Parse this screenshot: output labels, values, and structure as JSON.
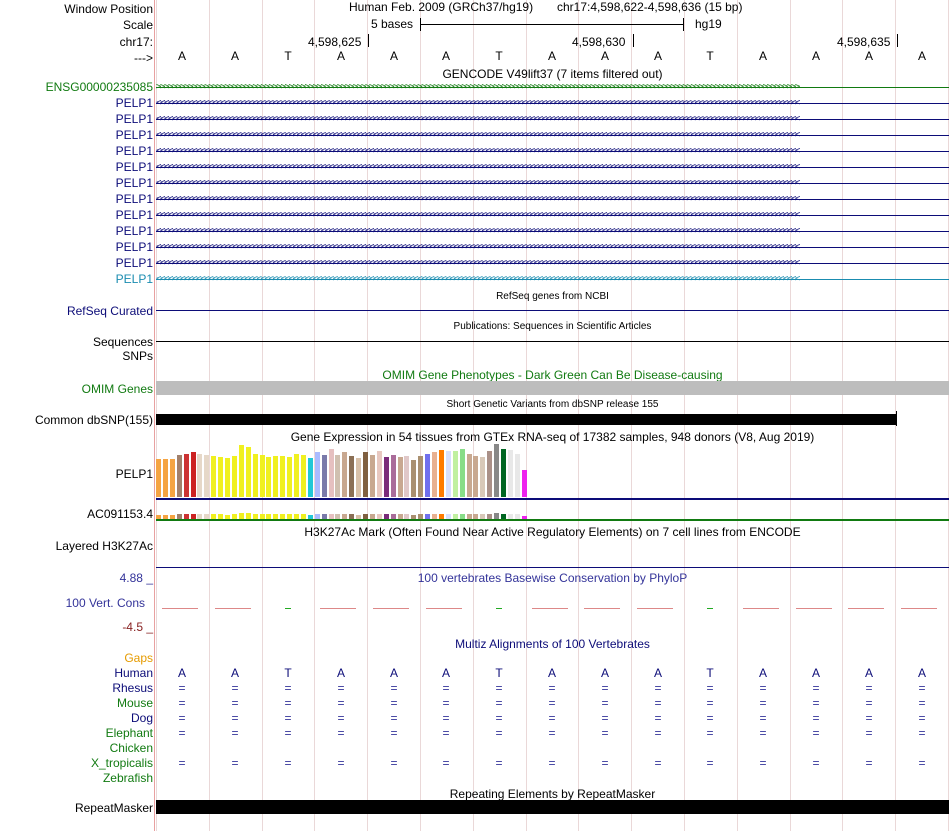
{
  "header": {
    "window_position_label": "Window Position",
    "scale_label": "Scale",
    "chrom_label": "chr17:",
    "arrow_label": "--->",
    "assembly_text": "Human Feb. 2009 (GRCh37/hg19)",
    "position_text": "chr17:4,598,622-4,598,636 (15 bp)",
    "scale_text": "5 bases",
    "db_text": "hg19",
    "ticks": [
      "4,598,625",
      "4,598,630",
      "4,598,635"
    ]
  },
  "sequence": [
    "A",
    "A",
    "T",
    "A",
    "A",
    "A",
    "T",
    "A",
    "A",
    "A",
    "T",
    "A",
    "A",
    "A",
    "A"
  ],
  "gencode": {
    "title": "GENCODE V49lift37 (7 items filtered out)",
    "first": {
      "label": "ENSG00000235085",
      "strand": "forward",
      "color": "#117a11"
    },
    "genes": [
      {
        "label": "PELP1",
        "color": "#0c0c78"
      },
      {
        "label": "PELP1",
        "color": "#0c0c78"
      },
      {
        "label": "PELP1",
        "color": "#0c0c78"
      },
      {
        "label": "PELP1",
        "color": "#0c0c78"
      },
      {
        "label": "PELP1",
        "color": "#0c0c78"
      },
      {
        "label": "PELP1",
        "color": "#0c0c78"
      },
      {
        "label": "PELP1",
        "color": "#0c0c78"
      },
      {
        "label": "PELP1",
        "color": "#0c0c78"
      },
      {
        "label": "PELP1",
        "color": "#0c0c78"
      },
      {
        "label": "PELP1",
        "color": "#0c0c78"
      },
      {
        "label": "PELP1",
        "color": "#0c0c78"
      },
      {
        "label": "PELP1",
        "color": "#1a8cb0"
      }
    ]
  },
  "refseq": {
    "title": "RefSeq genes from NCBI",
    "label": "RefSeq Curated",
    "color": "#0c0c78"
  },
  "publications": {
    "title": "Publications: Sequences in Scientific Articles",
    "label": "Sequences"
  },
  "snps_label": "SNPs",
  "omim": {
    "title": "OMIM Gene Phenotypes - Dark Green Can Be Disease-causing",
    "label": "OMIM Genes",
    "color": "#117a11"
  },
  "dbsnp": {
    "title": "Short Genetic Variants from dbSNP release 155",
    "label": "Common dbSNP(155)"
  },
  "gtex": {
    "title": "Gene Expression in 54 tissues from GTEx RNA-seq of 17382 samples, 948 donors (V8, Aug 2019)",
    "gene1": "PELP1",
    "gene2": "AC091153.4",
    "bars": [
      {
        "v": 0.72,
        "c": "#f5a442"
      },
      {
        "v": 0.72,
        "c": "#f5a442"
      },
      {
        "v": 0.72,
        "c": "#f5a442"
      },
      {
        "v": 0.8,
        "c": "#a2806b"
      },
      {
        "v": 0.82,
        "c": "#cc3333"
      },
      {
        "v": 0.85,
        "c": "#cc2222"
      },
      {
        "v": 0.82,
        "c": "#e6d8c8"
      },
      {
        "v": 0.8,
        "c": "#e6d8c8"
      },
      {
        "v": 0.78,
        "c": "#f0f020"
      },
      {
        "v": 0.76,
        "c": "#f0f020"
      },
      {
        "v": 0.74,
        "c": "#f0f020"
      },
      {
        "v": 0.78,
        "c": "#f0f020"
      },
      {
        "v": 0.98,
        "c": "#f0f020"
      },
      {
        "v": 0.95,
        "c": "#f0f020"
      },
      {
        "v": 0.82,
        "c": "#f0f020"
      },
      {
        "v": 0.8,
        "c": "#f0f020"
      },
      {
        "v": 0.76,
        "c": "#f0f020"
      },
      {
        "v": 0.78,
        "c": "#f0f020"
      },
      {
        "v": 0.78,
        "c": "#f0f020"
      },
      {
        "v": 0.76,
        "c": "#f0f020"
      },
      {
        "v": 0.82,
        "c": "#f0f020"
      },
      {
        "v": 0.8,
        "c": "#f0f020"
      },
      {
        "v": 0.74,
        "c": "#22c8d6"
      },
      {
        "v": 0.85,
        "c": "#aabbff"
      },
      {
        "v": 0.8,
        "c": "#7a7aaa"
      },
      {
        "v": 0.9,
        "c": "#e6c0c0"
      },
      {
        "v": 0.8,
        "c": "#d0c0b0"
      },
      {
        "v": 0.85,
        "c": "#c8a890"
      },
      {
        "v": 0.78,
        "c": "#8b6f55"
      },
      {
        "v": 0.74,
        "c": "#d8c0a8"
      },
      {
        "v": 0.84,
        "c": "#806040"
      },
      {
        "v": 0.8,
        "c": "#c8a890"
      },
      {
        "v": 0.86,
        "c": "#e8c8c0"
      },
      {
        "v": 0.76,
        "c": "#7a2c7a"
      },
      {
        "v": 0.8,
        "c": "#aa6c9a"
      },
      {
        "v": 0.76,
        "c": "#c8a890"
      },
      {
        "v": 0.78,
        "c": "#e0c8c8"
      },
      {
        "v": 0.7,
        "c": "#aa9070"
      },
      {
        "v": 0.78,
        "c": "#aa9070"
      },
      {
        "v": 0.82,
        "c": "#7070ee"
      },
      {
        "v": 0.84,
        "c": "#e8b090"
      },
      {
        "v": 0.88,
        "c": "#ff7b00"
      },
      {
        "v": 0.86,
        "c": "#d8e0ff"
      },
      {
        "v": 0.86,
        "c": "#c0f0a0"
      },
      {
        "v": 0.9,
        "c": "#88dd88"
      },
      {
        "v": 0.82,
        "c": "#c8a890"
      },
      {
        "v": 0.78,
        "c": "#c8a890"
      },
      {
        "v": 0.76,
        "c": "#d8c8b8"
      },
      {
        "v": 0.86,
        "c": "#aa9088"
      },
      {
        "v": 1.0,
        "c": "#888888"
      },
      {
        "v": 0.9,
        "c": "#006622"
      },
      {
        "v": 0.88,
        "c": "#e8e8e8"
      },
      {
        "v": 0.82,
        "c": "#e8e8e8"
      },
      {
        "v": 0.5,
        "c": "#ee22ee"
      }
    ]
  },
  "h3k27ac": {
    "title": "H3K27Ac Mark (Often Found Near Active Regulatory Elements) on 7 cell lines from ENCODE",
    "label": "Layered H3K27Ac"
  },
  "phylop": {
    "title": "100 vertebrates Basewise Conservation by PhyloP",
    "label": "100 Vert. Cons",
    "max": "4.88 _",
    "min": "-4.5 _",
    "color": "#333399"
  },
  "multiz": {
    "title": "Multiz Alignments of 100 Vertebrates",
    "gaps_label": "Gaps",
    "species": [
      {
        "name": "Human",
        "color": "#0c0c78",
        "row": [
          "A",
          "A",
          "T",
          "A",
          "A",
          "A",
          "T",
          "A",
          "A",
          "A",
          "T",
          "A",
          "A",
          "A",
          "A"
        ]
      },
      {
        "name": "Rhesus",
        "color": "#0c0c78",
        "row": [
          "=",
          "=",
          "=",
          "=",
          "=",
          "=",
          "=",
          "=",
          "=",
          "=",
          "=",
          "=",
          "=",
          "=",
          "="
        ]
      },
      {
        "name": "Mouse",
        "color": "#117a11",
        "row": [
          "=",
          "=",
          "=",
          "=",
          "=",
          "=",
          "=",
          "=",
          "=",
          "=",
          "=",
          "=",
          "=",
          "=",
          "="
        ]
      },
      {
        "name": "Dog",
        "color": "#0c0c78",
        "row": [
          "=",
          "=",
          "=",
          "=",
          "=",
          "=",
          "=",
          "=",
          "=",
          "=",
          "=",
          "=",
          "=",
          "=",
          "="
        ]
      },
      {
        "name": "Elephant",
        "color": "#117a11",
        "row": [
          "=",
          "=",
          "=",
          "=",
          "=",
          "=",
          "=",
          "=",
          "=",
          "=",
          "=",
          "=",
          "=",
          "=",
          "="
        ]
      },
      {
        "name": "Chicken",
        "color": "#117a11",
        "row": [
          "",
          "",
          "",
          "",
          "",
          "",
          "",
          "",
          "",
          "",
          "",
          "",
          "",
          "",
          ""
        ]
      },
      {
        "name": "X_tropicalis",
        "color": "#117a11",
        "row": [
          "=",
          "=",
          "=",
          "=",
          "=",
          "=",
          "=",
          "=",
          "=",
          "=",
          "=",
          "=",
          "=",
          "=",
          "="
        ]
      },
      {
        "name": "Zebrafish",
        "color": "#117a11",
        "row": [
          "",
          "",
          "",
          "",
          "",
          "",
          "",
          "",
          "",
          "",
          "",
          "",
          "",
          "",
          ""
        ]
      }
    ]
  },
  "repeatmasker": {
    "title": "Repeating Elements by RepeatMasker",
    "label": "RepeatMasker"
  }
}
